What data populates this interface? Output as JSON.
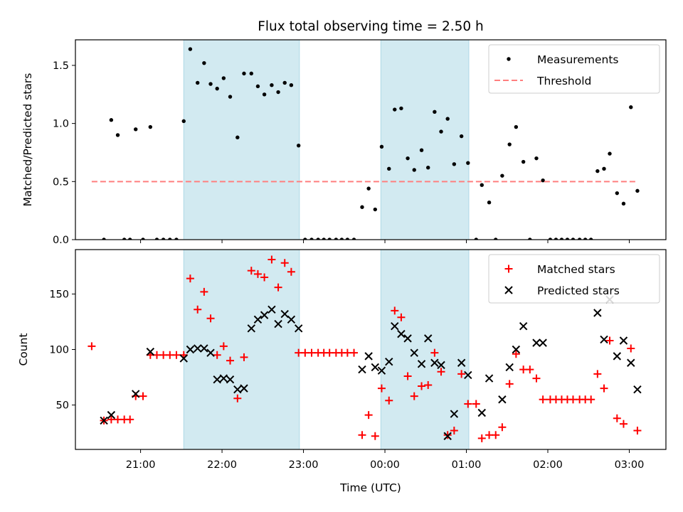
{
  "chart_data": {
    "title": "Flux total observing time = 2.50 h",
    "xlabel": "Time (UTC)",
    "x_unit": "hours, where 24.0 = 00:00 of the next day",
    "x_range": [
      20.2,
      27.45
    ],
    "x_ticks": [
      {
        "value": 21,
        "label": "21:00"
      },
      {
        "value": 22,
        "label": "22:00"
      },
      {
        "value": 23,
        "label": "23:00"
      },
      {
        "value": 24,
        "label": "00:00"
      },
      {
        "value": 25,
        "label": "01:00"
      },
      {
        "value": 26,
        "label": "02:00"
      },
      {
        "value": 27,
        "label": "03:00"
      }
    ],
    "highlight_color": "#add8e6",
    "highlight_spans": [
      [
        21.53,
        22.95
      ],
      [
        23.95,
        25.03
      ]
    ],
    "panels": [
      {
        "type": "scatter",
        "ylabel": "Matched/Predicted stars",
        "ylim": [
          0,
          1.72
        ],
        "yticks": [
          {
            "value": 0,
            "label": "0.0"
          },
          {
            "value": 0.5,
            "label": "0.5"
          },
          {
            "value": 1.0,
            "label": "1.0"
          },
          {
            "value": 1.5,
            "label": "1.5"
          }
        ],
        "legend_position": "top-right",
        "series": [
          {
            "name": "Measurements",
            "marker": "dot",
            "color": "#000000",
            "points": [
              [
                20.55,
                0
              ],
              [
                20.64,
                1.03
              ],
              [
                20.72,
                0.9
              ],
              [
                20.8,
                0
              ],
              [
                20.87,
                0
              ],
              [
                20.94,
                0.95
              ],
              [
                21.03,
                0
              ],
              [
                21.12,
                0.97
              ],
              [
                21.2,
                0
              ],
              [
                21.28,
                0
              ],
              [
                21.36,
                0
              ],
              [
                21.44,
                0
              ],
              [
                21.53,
                1.02
              ],
              [
                21.61,
                1.64
              ],
              [
                21.7,
                1.35
              ],
              [
                21.78,
                1.52
              ],
              [
                21.86,
                1.34
              ],
              [
                21.94,
                1.3
              ],
              [
                22.02,
                1.39
              ],
              [
                22.1,
                1.23
              ],
              [
                22.19,
                0.88
              ],
              [
                22.27,
                1.43
              ],
              [
                22.36,
                1.43
              ],
              [
                22.44,
                1.32
              ],
              [
                22.52,
                1.25
              ],
              [
                22.61,
                1.33
              ],
              [
                22.69,
                1.27
              ],
              [
                22.77,
                1.35
              ],
              [
                22.85,
                1.33
              ],
              [
                22.94,
                0.81
              ],
              [
                23.02,
                0
              ],
              [
                23.1,
                0
              ],
              [
                23.18,
                0
              ],
              [
                23.25,
                0
              ],
              [
                23.32,
                0
              ],
              [
                23.4,
                0
              ],
              [
                23.47,
                0
              ],
              [
                23.54,
                0
              ],
              [
                23.62,
                0
              ],
              [
                23.72,
                0.28
              ],
              [
                23.8,
                0.44
              ],
              [
                23.88,
                0.26
              ],
              [
                23.96,
                0.8
              ],
              [
                24.05,
                0.61
              ],
              [
                24.12,
                1.12
              ],
              [
                24.2,
                1.13
              ],
              [
                24.28,
                0.7
              ],
              [
                24.36,
                0.6
              ],
              [
                24.45,
                0.77
              ],
              [
                24.53,
                0.62
              ],
              [
                24.61,
                1.1
              ],
              [
                24.69,
                0.93
              ],
              [
                24.77,
                1.04
              ],
              [
                24.85,
                0.65
              ],
              [
                24.94,
                0.89
              ],
              [
                25.02,
                0.66
              ],
              [
                25.12,
                0
              ],
              [
                25.19,
                0.47
              ],
              [
                25.28,
                0.32
              ],
              [
                25.36,
                0
              ],
              [
                25.44,
                0.55
              ],
              [
                25.53,
                0.82
              ],
              [
                25.61,
                0.97
              ],
              [
                25.7,
                0.67
              ],
              [
                25.78,
                0
              ],
              [
                25.86,
                0.7
              ],
              [
                25.94,
                0.51
              ],
              [
                26.03,
                0
              ],
              [
                26.1,
                0
              ],
              [
                26.17,
                0
              ],
              [
                26.24,
                0
              ],
              [
                26.31,
                0
              ],
              [
                26.39,
                0
              ],
              [
                26.46,
                0
              ],
              [
                26.53,
                0
              ],
              [
                26.61,
                0.59
              ],
              [
                26.69,
                0.61
              ],
              [
                26.76,
                0.74
              ],
              [
                26.85,
                0.4
              ],
              [
                26.93,
                0.31
              ],
              [
                27.02,
                1.14
              ],
              [
                27.1,
                0.42
              ]
            ]
          },
          {
            "name": "Threshold",
            "marker": "dashed-line",
            "color": "#ff7f7f",
            "points": [
              [
                20.4,
                0.5
              ],
              [
                27.1,
                0.5
              ]
            ]
          }
        ]
      },
      {
        "type": "scatter",
        "ylabel": "Count",
        "ylim": [
          10,
          190
        ],
        "yticks": [
          {
            "value": 50,
            "label": "50"
          },
          {
            "value": 100,
            "label": "100"
          },
          {
            "value": 150,
            "label": "150"
          }
        ],
        "legend_position": "top-right",
        "series": [
          {
            "name": "Matched stars",
            "marker": "plus",
            "color": "#ff0000",
            "points": [
              [
                20.4,
                103
              ],
              [
                20.55,
                36
              ],
              [
                20.64,
                37
              ],
              [
                20.72,
                37
              ],
              [
                20.8,
                37
              ],
              [
                20.87,
                37
              ],
              [
                20.94,
                58
              ],
              [
                21.03,
                58
              ],
              [
                21.12,
                95
              ],
              [
                21.2,
                95
              ],
              [
                21.28,
                95
              ],
              [
                21.36,
                95
              ],
              [
                21.44,
                95
              ],
              [
                21.53,
                95
              ],
              [
                21.61,
                164
              ],
              [
                21.7,
                136
              ],
              [
                21.78,
                152
              ],
              [
                21.86,
                128
              ],
              [
                21.94,
                95
              ],
              [
                22.02,
                103
              ],
              [
                22.1,
                90
              ],
              [
                22.19,
                56
              ],
              [
                22.27,
                93
              ],
              [
                22.36,
                171
              ],
              [
                22.44,
                168
              ],
              [
                22.52,
                165
              ],
              [
                22.61,
                181
              ],
              [
                22.69,
                156
              ],
              [
                22.77,
                178
              ],
              [
                22.85,
                170
              ],
              [
                22.94,
                97
              ],
              [
                23.02,
                97
              ],
              [
                23.1,
                97
              ],
              [
                23.18,
                97
              ],
              [
                23.25,
                97
              ],
              [
                23.32,
                97
              ],
              [
                23.4,
                97
              ],
              [
                23.47,
                97
              ],
              [
                23.54,
                97
              ],
              [
                23.62,
                97
              ],
              [
                23.72,
                23
              ],
              [
                23.8,
                41
              ],
              [
                23.88,
                22
              ],
              [
                23.96,
                65
              ],
              [
                24.05,
                54
              ],
              [
                24.12,
                135
              ],
              [
                24.2,
                129
              ],
              [
                24.28,
                76
              ],
              [
                24.36,
                58
              ],
              [
                24.45,
                67
              ],
              [
                24.53,
                68
              ],
              [
                24.61,
                97
              ],
              [
                24.69,
                80
              ],
              [
                24.77,
                23
              ],
              [
                24.85,
                27
              ],
              [
                24.94,
                78
              ],
              [
                25.02,
                51
              ],
              [
                25.12,
                51
              ],
              [
                25.19,
                20
              ],
              [
                25.28,
                23
              ],
              [
                25.36,
                23
              ],
              [
                25.44,
                30
              ],
              [
                25.53,
                69
              ],
              [
                25.61,
                96
              ],
              [
                25.7,
                82
              ],
              [
                25.78,
                82
              ],
              [
                25.86,
                74
              ],
              [
                25.94,
                55
              ],
              [
                26.03,
                55
              ],
              [
                26.1,
                55
              ],
              [
                26.17,
                55
              ],
              [
                26.24,
                55
              ],
              [
                26.31,
                55
              ],
              [
                26.39,
                55
              ],
              [
                26.46,
                55
              ],
              [
                26.53,
                55
              ],
              [
                26.61,
                78
              ],
              [
                26.69,
                65
              ],
              [
                26.76,
                108
              ],
              [
                26.85,
                38
              ],
              [
                26.93,
                33
              ],
              [
                27.02,
                101
              ],
              [
                27.1,
                27
              ]
            ]
          },
          {
            "name": "Predicted stars",
            "marker": "x",
            "color": "#000000",
            "points": [
              [
                20.55,
                36
              ],
              [
                20.64,
                41
              ],
              [
                20.94,
                60
              ],
              [
                21.12,
                98
              ],
              [
                21.53,
                92
              ],
              [
                21.61,
                100
              ],
              [
                21.7,
                101
              ],
              [
                21.78,
                101
              ],
              [
                21.86,
                97
              ],
              [
                21.94,
                73
              ],
              [
                22.02,
                74
              ],
              [
                22.1,
                73
              ],
              [
                22.19,
                64
              ],
              [
                22.27,
                65
              ],
              [
                22.36,
                119
              ],
              [
                22.44,
                127
              ],
              [
                22.52,
                131
              ],
              [
                22.61,
                136
              ],
              [
                22.69,
                123
              ],
              [
                22.77,
                132
              ],
              [
                22.85,
                127
              ],
              [
                22.94,
                119
              ],
              [
                23.72,
                82
              ],
              [
                23.8,
                94
              ],
              [
                23.88,
                84
              ],
              [
                23.96,
                81
              ],
              [
                24.05,
                89
              ],
              [
                24.12,
                121
              ],
              [
                24.2,
                114
              ],
              [
                24.28,
                110
              ],
              [
                24.36,
                97
              ],
              [
                24.45,
                87
              ],
              [
                24.53,
                110
              ],
              [
                24.61,
                88
              ],
              [
                24.69,
                86
              ],
              [
                24.77,
                22
              ],
              [
                24.85,
                42
              ],
              [
                24.94,
                88
              ],
              [
                25.02,
                77
              ],
              [
                25.19,
                43
              ],
              [
                25.28,
                74
              ],
              [
                25.44,
                55
              ],
              [
                25.53,
                84
              ],
              [
                25.61,
                100
              ],
              [
                25.7,
                121
              ],
              [
                25.86,
                106
              ],
              [
                25.94,
                106
              ],
              [
                26.61,
                133
              ],
              [
                26.69,
                109
              ],
              [
                26.76,
                145
              ],
              [
                26.85,
                94
              ],
              [
                26.93,
                108
              ],
              [
                27.02,
                88
              ],
              [
                27.1,
                64
              ]
            ]
          }
        ]
      }
    ]
  }
}
